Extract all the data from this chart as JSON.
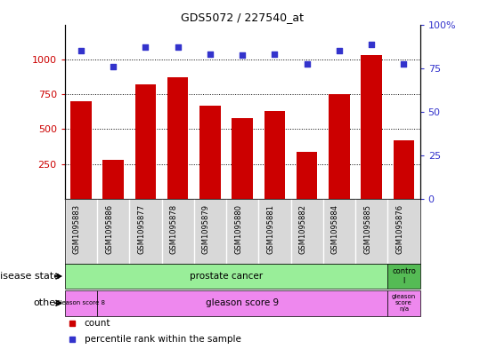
{
  "title": "GDS5072 / 227540_at",
  "samples": [
    "GSM1095883",
    "GSM1095886",
    "GSM1095877",
    "GSM1095878",
    "GSM1095879",
    "GSM1095880",
    "GSM1095881",
    "GSM1095882",
    "GSM1095884",
    "GSM1095885",
    "GSM1095876"
  ],
  "counts": [
    700,
    280,
    820,
    870,
    670,
    580,
    630,
    340,
    750,
    1030,
    420
  ],
  "percentiles": [
    1060,
    950,
    1090,
    1090,
    1040,
    1030,
    1040,
    970,
    1060,
    1110,
    970
  ],
  "bar_color": "#cc0000",
  "dot_color": "#3333cc",
  "ylim_left": [
    0,
    1250
  ],
  "ylim_right": [
    0,
    1250
  ],
  "yticks_left": [
    250,
    500,
    750,
    1000
  ],
  "yticks_right_vals": [
    0,
    312.5,
    625,
    937.5,
    1250
  ],
  "ytick_labels_right": [
    "0",
    "25",
    "50",
    "75",
    "100%"
  ],
  "disease_state_color": "#99ee99",
  "control_color": "#55bb55",
  "gleason_color": "#ee88ee",
  "disease_state_label": "prostate cancer",
  "control_label": "contro\nl",
  "gleason8_label": "gleason score 8",
  "gleason9_label": "gleason score 9",
  "gleason_na_label": "gleason\nscore\nn/a",
  "row1_label": "disease state",
  "row2_label": "other",
  "legend_count": "count",
  "legend_pct": "percentile rank within the sample",
  "sample_bg_color": "#d8d8d8",
  "dotted_line_color": "#000000",
  "n_samples": 11
}
